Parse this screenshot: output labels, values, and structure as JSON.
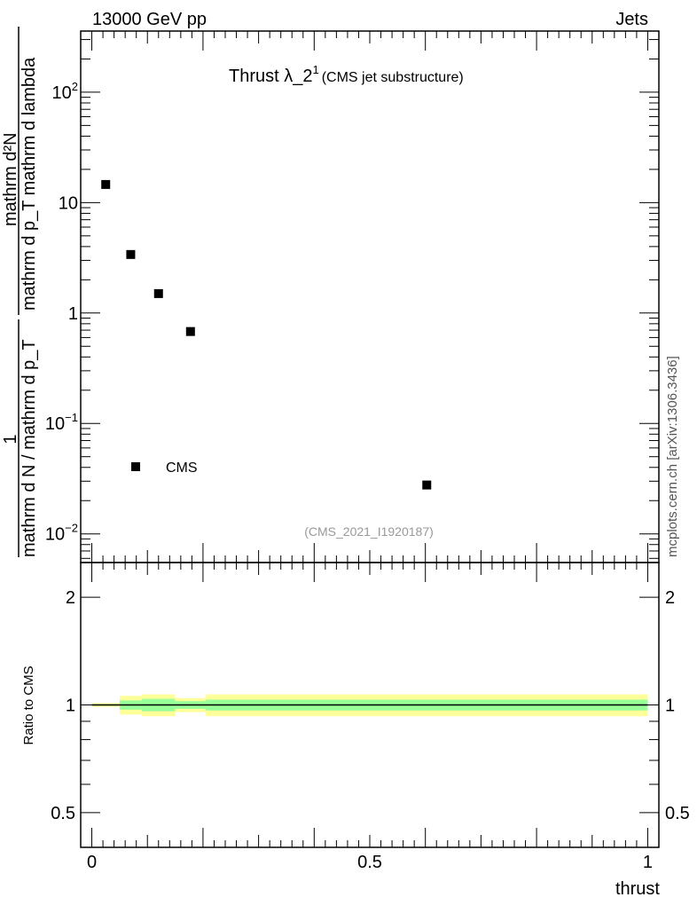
{
  "header": {
    "left": "13000 GeV pp",
    "right": "Jets"
  },
  "side_label": "mcplots.cern.ch [arXiv:1306.3436]",
  "analysis_id": "(CMS_2021_I1920187)",
  "chart_data": [
    {
      "type": "scatter",
      "title": "Thrust λ_2",
      "title_sup": "1",
      "subtitle": "(CMS jet substructure)",
      "ylabel_left_num": "1",
      "ylabel_left_den": "mathrm d N / mathrm d p_T",
      "ylabel_right_num": "mathrm d²N",
      "ylabel_right_den": "mathrm d p_T mathrm d lambda",
      "yscale": "log",
      "xlim": [
        -0.02,
        1.02
      ],
      "ylim": [
        0.0055,
        358
      ],
      "y_ticks": [
        {
          "v": 100,
          "base": "10",
          "exp": "2"
        },
        {
          "v": 10,
          "base": "10",
          "exp": ""
        },
        {
          "v": 1,
          "base": "1",
          "exp": ""
        },
        {
          "v": 0.1,
          "base": "10",
          "exp": "−1"
        },
        {
          "v": 0.01,
          "base": "10",
          "exp": "−2"
        }
      ],
      "legend": {
        "label": "CMS",
        "placement": "bottom-left"
      },
      "series": [
        {
          "name": "CMS",
          "x": [
            0.025,
            0.07,
            0.12,
            0.1775,
            0.6025
          ],
          "y": [
            14.6,
            3.39,
            1.5,
            0.68,
            0.0277
          ]
        }
      ]
    },
    {
      "type": "area",
      "ylabel": "Ratio to CMS",
      "xlabel": "thrust",
      "yscale": "log",
      "xlim": [
        -0.02,
        1.02
      ],
      "ylim": [
        0.4,
        2.5
      ],
      "y_ticks": [
        {
          "v": 2,
          "label": "2"
        },
        {
          "v": 1,
          "label": "1"
        },
        {
          "v": 0.5,
          "label": "0.5"
        }
      ],
      "x_ticks": [
        {
          "v": 0,
          "label": "0"
        },
        {
          "v": 0.5,
          "label": "0.5"
        },
        {
          "v": 1,
          "label": "1"
        }
      ],
      "bins": [
        [
          0,
          0.05
        ],
        [
          0.05,
          0.09
        ],
        [
          0.09,
          0.15
        ],
        [
          0.15,
          0.205
        ],
        [
          0.205,
          1.0
        ]
      ],
      "band_inner": [
        0.005,
        0.03,
        0.04,
        0.025,
        0.035
      ],
      "band_outer": [
        0.012,
        0.06,
        0.07,
        0.045,
        0.07
      ],
      "colors": {
        "inner": "#99ff99",
        "outer": "#ffff99",
        "line": "#000000"
      }
    }
  ]
}
